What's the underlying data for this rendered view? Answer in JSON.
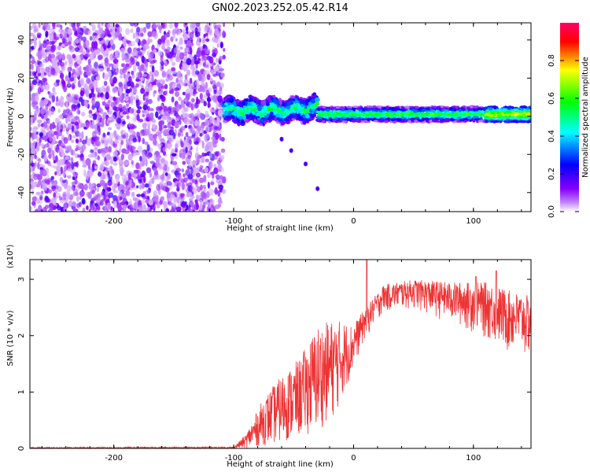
{
  "title": "GN02.2023.252.05.42.R14",
  "chart_data": [
    {
      "type": "heatmap",
      "name": "spectrogram",
      "xlabel": "Height of straight line (km)",
      "ylabel": "Frequency (Hz)",
      "xlim": [
        -270,
        148
      ],
      "ylim": [
        -50,
        49
      ],
      "xticks": [
        -200,
        -100,
        0,
        100
      ],
      "yticks": [
        -40,
        -20,
        0,
        20,
        40
      ],
      "colorbar": {
        "label": "Normalized spectral amplitude",
        "range": [
          0.0,
          1.0
        ],
        "ticks": [
          "0.0",
          "0.2",
          "0.4",
          "0.6",
          "0.8"
        ],
        "tick_values": [
          0.0,
          0.2,
          0.4,
          0.6,
          0.8
        ],
        "colormap": [
          "#ffffff",
          "#8800ff",
          "#0000ff",
          "#00ffff",
          "#00ff00",
          "#ffff00",
          "#ff0000",
          "#ff0066"
        ]
      },
      "regions": [
        {
          "description": "noise",
          "x_range": [
            -270,
            -108
          ],
          "freq_range": [
            -50,
            49
          ],
          "amplitude": 0.15
        },
        {
          "description": "signal-unstable",
          "x_range": [
            -108,
            -30
          ],
          "freq_center": 3,
          "freq_spread": 6,
          "amplitude": 0.45
        },
        {
          "description": "carrier",
          "x_range": [
            -30,
            148
          ],
          "freq_center": 1,
          "freq_spread": 2,
          "amplitude": 0.6
        }
      ],
      "features": [
        {
          "x": -60,
          "y": -12
        },
        {
          "x": -52,
          "y": -18
        },
        {
          "x": -40,
          "y": -25
        },
        {
          "x": -30,
          "y": -38
        }
      ]
    },
    {
      "type": "line",
      "name": "snr",
      "xlabel": "Height of straight line (km)",
      "ylabel": "SNR (10 * v/v)",
      "multiplier": "(x10⁴)",
      "xlim": [
        -270,
        148
      ],
      "ylim": [
        0,
        3.35
      ],
      "xticks": [
        -200,
        -100,
        0,
        100
      ],
      "yticks": [
        0,
        1,
        2,
        3
      ],
      "color": "#ee3333",
      "envelope": [
        {
          "x": -270,
          "lo": 0.0,
          "hi": 0.02
        },
        {
          "x": -100,
          "lo": 0.0,
          "hi": 0.03
        },
        {
          "x": -90,
          "lo": 0.0,
          "hi": 0.25
        },
        {
          "x": -75,
          "lo": 0.05,
          "hi": 0.9
        },
        {
          "x": -60,
          "lo": 0.1,
          "hi": 1.3
        },
        {
          "x": -45,
          "lo": 0.2,
          "hi": 1.6
        },
        {
          "x": -30,
          "lo": 0.3,
          "hi": 2.2
        },
        {
          "x": -15,
          "lo": 0.6,
          "hi": 2.3
        },
        {
          "x": 0,
          "lo": 1.4,
          "hi": 2.2
        },
        {
          "x": 10,
          "lo": 1.9,
          "hi": 2.5
        },
        {
          "x": 25,
          "lo": 2.4,
          "hi": 2.9
        },
        {
          "x": 50,
          "lo": 2.45,
          "hi": 3.0
        },
        {
          "x": 80,
          "lo": 2.2,
          "hi": 2.95
        },
        {
          "x": 110,
          "lo": 1.9,
          "hi": 2.95
        },
        {
          "x": 130,
          "lo": 1.6,
          "hi": 2.8
        },
        {
          "x": 148,
          "lo": 1.5,
          "hi": 2.7
        }
      ],
      "peaks": [
        {
          "x": 11,
          "y": 3.35
        },
        {
          "x": 102,
          "y": 3.05
        },
        {
          "x": 119,
          "y": 3.15
        }
      ]
    }
  ]
}
